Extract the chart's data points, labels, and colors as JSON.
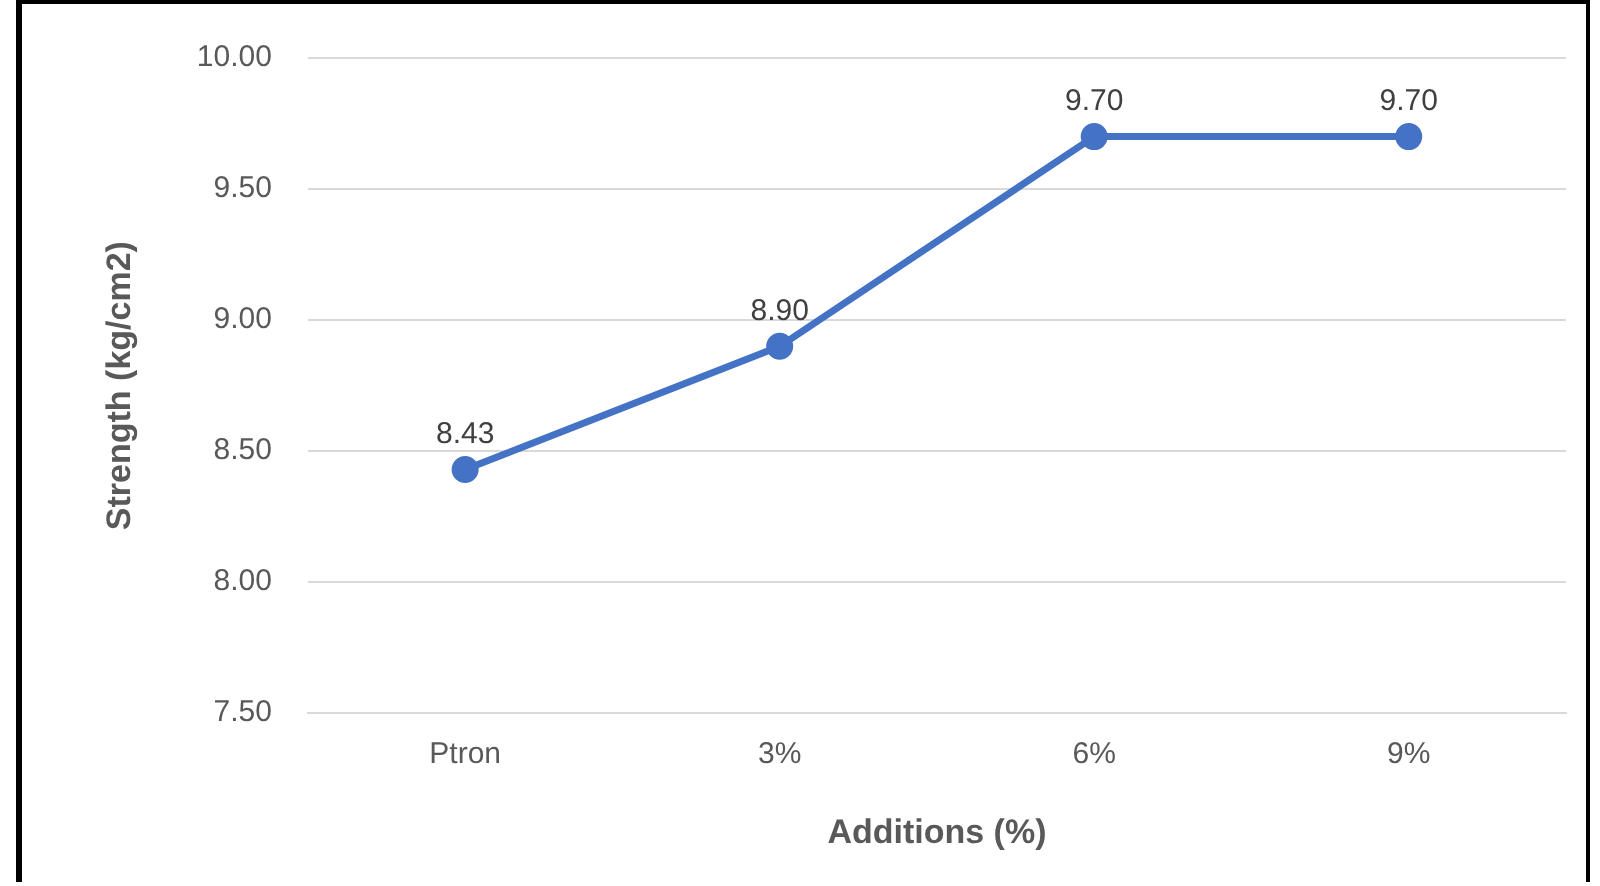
{
  "chart_data": {
    "type": "line",
    "xlabel": "Additions (%)",
    "ylabel": "Strength (kg/cm2)",
    "categories": [
      "Ptron",
      "3%",
      "6%",
      "9%"
    ],
    "series": [
      {
        "color": "#4472c4",
        "values": [
          8.43,
          8.9,
          9.7,
          9.7
        ],
        "value_labels": [
          "8.43",
          "8.90",
          "9.70",
          "9.70"
        ]
      }
    ],
    "ylim": [
      7.5,
      10
    ],
    "yticks": [
      {
        "value": 7.5,
        "label": "7.50"
      },
      {
        "value": 8,
        "label": "8.00"
      },
      {
        "value": 8.5,
        "label": "8.50"
      },
      {
        "value": 9,
        "label": "9.00"
      },
      {
        "value": 9.5,
        "label": "9.50"
      },
      {
        "value": 10,
        "label": "10.00"
      }
    ],
    "grid": "y",
    "legend": false,
    "marker": "circle",
    "line_style": "solid"
  }
}
